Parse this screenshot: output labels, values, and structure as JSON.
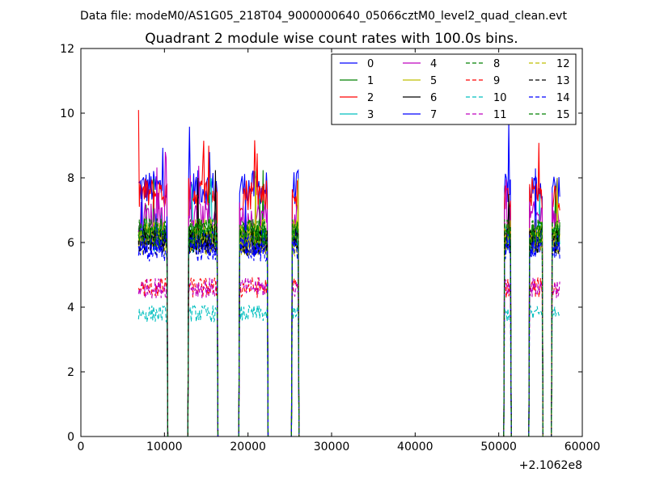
{
  "suptitle": "Data file: modeM0/AS1G05_218T04_9000000640_05066cztM0_level2_quad_clean.evt",
  "chart_data": {
    "type": "line",
    "title": "Quadrant 2 module wise count rates with 100.0s bins.",
    "xlabel": "",
    "ylabel": "",
    "x_offset_label": "+2.1062e8",
    "xlim": [
      0,
      60000
    ],
    "ylim": [
      0,
      12
    ],
    "x_ticks": [
      0,
      10000,
      20000,
      30000,
      40000,
      50000,
      60000
    ],
    "y_ticks": [
      0,
      2,
      4,
      6,
      8,
      10,
      12
    ],
    "grid": false,
    "legend_placement": "top-right",
    "legend_columns": 4,
    "x_step": 100,
    "active_segments": [
      [
        6900,
        10300
      ],
      [
        12900,
        16300
      ],
      [
        19000,
        22300
      ],
      [
        25300,
        26000
      ],
      [
        50700,
        51400
      ],
      [
        53700,
        55200
      ],
      [
        56400,
        57300
      ]
    ],
    "series": [
      {
        "name": "0",
        "color": "#0000ff",
        "dashed": false,
        "mean": 7.7
      },
      {
        "name": "1",
        "color": "#008000",
        "dashed": false,
        "mean": 6.2
      },
      {
        "name": "2",
        "color": "#ff0000",
        "dashed": false,
        "mean": 7.5
      },
      {
        "name": "3",
        "color": "#00bfbf",
        "dashed": false,
        "mean": 6.1
      },
      {
        "name": "4",
        "color": "#bf00bf",
        "dashed": false,
        "mean": 6.8
      },
      {
        "name": "5",
        "color": "#bfbf00",
        "dashed": false,
        "mean": 6.3
      },
      {
        "name": "6",
        "color": "#000000",
        "dashed": false,
        "mean": 6.1
      },
      {
        "name": "7",
        "color": "#0000ff",
        "dashed": false,
        "mean": 6.0
      },
      {
        "name": "8",
        "color": "#008000",
        "dashed": true,
        "mean": 6.3
      },
      {
        "name": "9",
        "color": "#ff0000",
        "dashed": true,
        "mean": 4.6
      },
      {
        "name": "10",
        "color": "#00bfbf",
        "dashed": true,
        "mean": 3.8
      },
      {
        "name": "11",
        "color": "#bf00bf",
        "dashed": true,
        "mean": 4.6
      },
      {
        "name": "12",
        "color": "#bfbf00",
        "dashed": true,
        "mean": 6.0
      },
      {
        "name": "13",
        "color": "#000000",
        "dashed": true,
        "mean": 6.0
      },
      {
        "name": "14",
        "color": "#0000ff",
        "dashed": true,
        "mean": 5.8
      },
      {
        "name": "15",
        "color": "#008000",
        "dashed": true,
        "mean": 6.3
      }
    ]
  }
}
